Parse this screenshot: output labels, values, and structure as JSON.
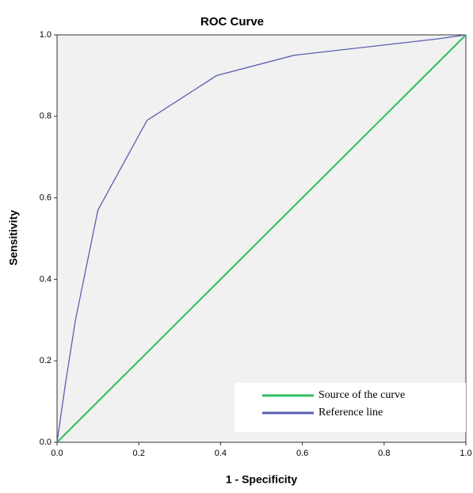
{
  "chart_data": {
    "type": "line",
    "title": "ROC Curve",
    "x_label": "1 - Specificity",
    "y_label": "Sensitivity",
    "xlim": [
      0,
      1
    ],
    "ylim": [
      0,
      1
    ],
    "xticks": [
      {
        "value": 0,
        "label": "0.0"
      },
      {
        "value": 0.2,
        "label": "0.2"
      },
      {
        "value": 0.4,
        "label": "0.4"
      },
      {
        "value": 0.6,
        "label": "0.6"
      },
      {
        "value": 0.8,
        "label": "0.8"
      },
      {
        "value": 1,
        "label": "1.0"
      }
    ],
    "yticks": [
      {
        "value": 0,
        "label": "0.0"
      },
      {
        "value": 0.2,
        "label": "0.2"
      },
      {
        "value": 0.4,
        "label": "0.4"
      },
      {
        "value": 0.6,
        "label": "0.6"
      },
      {
        "value": 0.8,
        "label": "0.8"
      },
      {
        "value": 1,
        "label": "1.0"
      }
    ],
    "legend": "lower right",
    "series": [
      {
        "name": "Source of the curve",
        "color": "#2fbf5f",
        "x": [
          0,
          1
        ],
        "values": [
          0,
          1
        ]
      },
      {
        "name": "Reference line",
        "color": "#5a5fb0",
        "x": [
          0,
          0.01,
          0.02,
          0.045,
          0.1,
          0.22,
          0.39,
          0.58,
          0.93,
          1
        ],
        "values": [
          0,
          0.07,
          0.14,
          0.3,
          0.57,
          0.79,
          0.9,
          0.95,
          0.99,
          1
        ]
      }
    ]
  }
}
